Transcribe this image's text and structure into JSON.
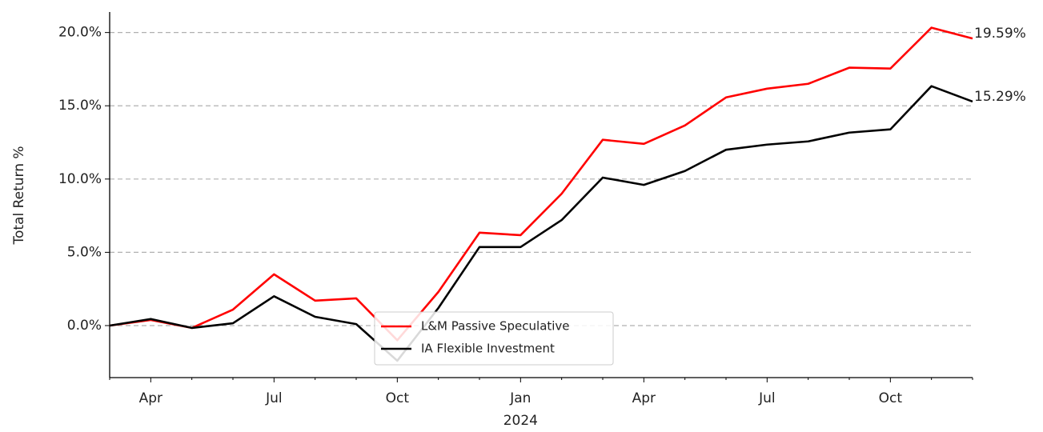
{
  "chart_data": {
    "type": "line",
    "y_label": "Total Return %",
    "categories": [
      null,
      "Apr",
      null,
      null,
      "Jul",
      null,
      null,
      "Oct",
      null,
      null,
      "Jan\n2024",
      null,
      null,
      "Apr",
      null,
      null,
      "Jul",
      null,
      null,
      "Oct",
      null,
      null
    ],
    "series": [
      {
        "name": "L&M Passive Speculative",
        "color": "#ff0000",
        "end_label": "19.59%",
        "values": [
          0,
          0.38,
          -0.16,
          1.09,
          3.5,
          1.7,
          1.86,
          -1.0,
          2.3,
          6.34,
          6.17,
          9.0,
          12.68,
          12.4,
          13.66,
          15.57,
          16.17,
          16.5,
          17.6,
          17.54,
          20.33,
          19.59
        ]
      },
      {
        "name": "IA Flexible Investment",
        "color": "#000000",
        "end_label": "15.29%",
        "values": [
          0,
          0.45,
          -0.16,
          0.16,
          2.0,
          0.6,
          0.1,
          -2.4,
          1.2,
          5.36,
          5.36,
          7.2,
          10.1,
          9.6,
          10.55,
          12.0,
          12.35,
          12.57,
          13.17,
          13.39,
          16.34,
          15.29
        ]
      }
    ],
    "ylim": [
      -3.55,
      21.4
    ],
    "yticks": [
      {
        "value": 0,
        "label": "0.0%"
      },
      {
        "value": 5,
        "label": "5.0%"
      },
      {
        "value": 10,
        "label": "10.0%"
      },
      {
        "value": 15,
        "label": "15.0%"
      },
      {
        "value": 20,
        "label": "20.0%"
      }
    ],
    "grid": true,
    "legend": "lower center"
  }
}
